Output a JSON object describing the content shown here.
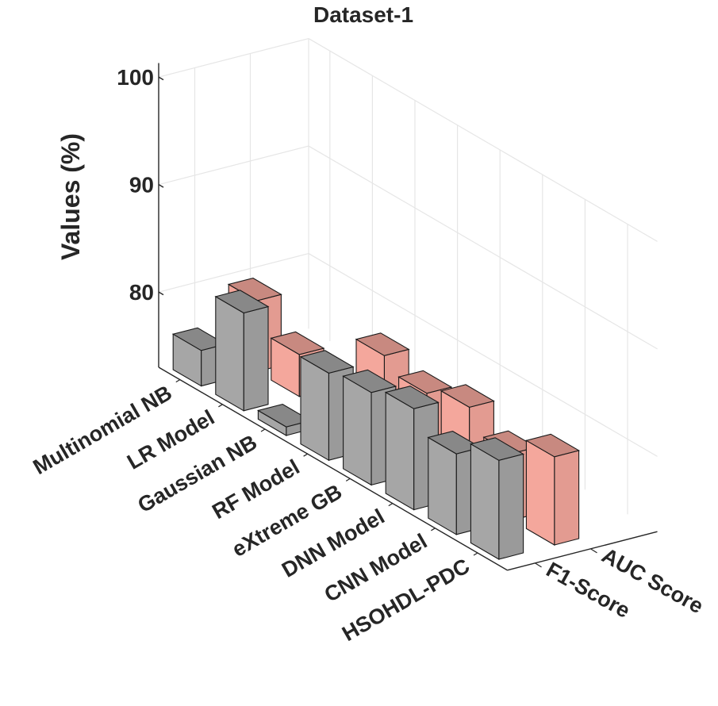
{
  "chart_data": {
    "type": "bar3d",
    "title": "Dataset-1",
    "ylabel": "Values (%)",
    "zlim": [
      73,
      100
    ],
    "zticks": [
      80,
      90,
      100
    ],
    "categories": [
      "Multinomial NB",
      "LR Model",
      "Gaussian NB",
      "RF Model",
      "eXtreme GB",
      "DNN Model",
      "CNN Model",
      "HSOHDL-PDC"
    ],
    "series": [
      {
        "name": "F1-Score",
        "color": "#a6a6a6",
        "values": [
          76.3,
          82.1,
          73.8,
          81.1,
          81.6,
          82.4,
          80.5,
          82.2
        ]
      },
      {
        "name": "AUC Score",
        "color": "#f4a79c",
        "values": [
          79.6,
          76.9,
          75.9,
          81.4,
          80.2,
          81.2,
          79.2,
          81.2
        ]
      }
    ]
  }
}
